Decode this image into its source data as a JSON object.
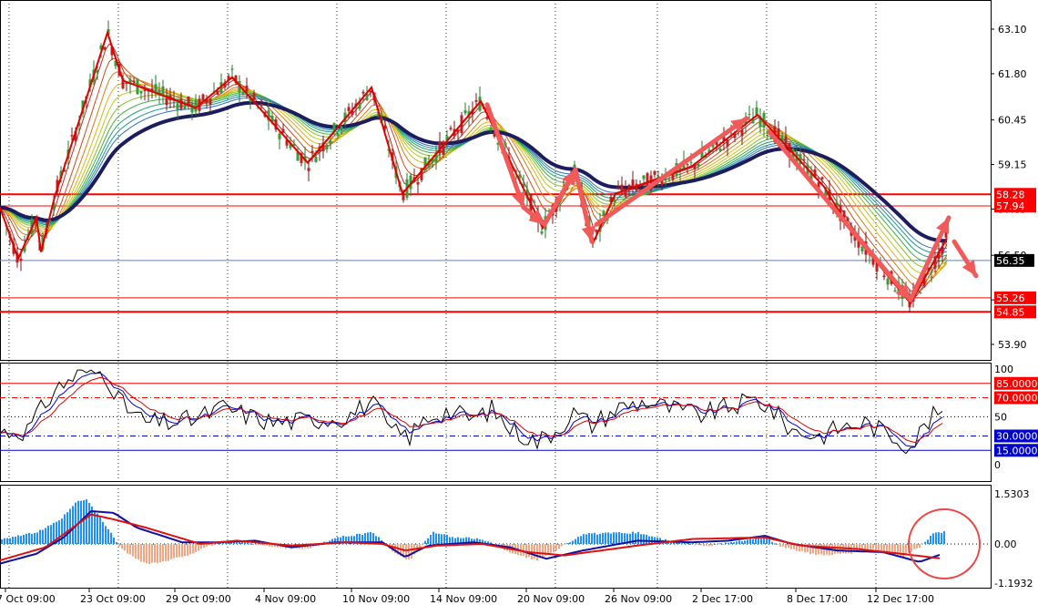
{
  "chart_data": [
    {
      "type": "candlestick",
      "pane": "price",
      "y_ticks": [
        "63.10",
        "61.80",
        "60.45",
        "59.15",
        "57.85",
        "56.50",
        "55.20",
        "53.90"
      ],
      "ylim": [
        53.4,
        63.6
      ],
      "levels": [
        {
          "value": 58.28,
          "label": "58.28"
        },
        {
          "value": 57.94,
          "label": "57.94"
        },
        {
          "value": 55.26,
          "label": "55.26"
        },
        {
          "value": 54.85,
          "label": "54.85"
        }
      ],
      "current_price": {
        "value": 56.35,
        "label": "56.35"
      },
      "zigzag": [
        [
          0,
          57.9
        ],
        [
          20,
          56.4
        ],
        [
          40,
          57.6
        ],
        [
          45,
          56.6
        ],
        [
          60,
          58.2
        ],
        [
          118,
          63.0
        ],
        [
          135,
          61.6
        ],
        [
          215,
          60.8
        ],
        [
          255,
          61.7
        ],
        [
          338,
          59.2
        ],
        [
          408,
          61.4
        ],
        [
          442,
          58.3
        ],
        [
          528,
          61.0
        ],
        [
          596,
          57.3
        ],
        [
          630,
          59.0
        ],
        [
          652,
          56.9
        ],
        [
          676,
          58.3
        ],
        [
          760,
          59.1
        ],
        [
          832,
          60.6
        ],
        [
          905,
          58.5
        ],
        [
          935,
          57.2
        ],
        [
          1000,
          55.1
        ],
        [
          1040,
          57.0
        ]
      ],
      "arrows": [
        [
          [
            535,
            60.9
          ],
          [
            575,
            57.9
          ]
        ],
        [
          [
            575,
            57.9
          ],
          [
            598,
            57.4
          ]
        ],
        [
          [
            598,
            57.4
          ],
          [
            632,
            59.0
          ]
        ],
        [
          [
            632,
            59.0
          ],
          [
            650,
            56.9
          ]
        ],
        [
          [
            655,
            57.4
          ],
          [
            820,
            60.5
          ]
        ],
        [
          [
            845,
            60.1
          ],
          [
            1000,
            55.2
          ]
        ],
        [
          [
            1000,
            55.2
          ],
          [
            1042,
            57.6
          ]
        ],
        [
          [
            1048,
            56.9
          ],
          [
            1072,
            55.9
          ]
        ]
      ]
    },
    {
      "type": "line",
      "pane": "stochastic",
      "y_ticks": [
        "100",
        "50",
        "0"
      ],
      "ylim": [
        0,
        100
      ],
      "levels": [
        {
          "value": 85,
          "label": "85.0000"
        },
        {
          "value": 70,
          "label": "70.0000"
        },
        {
          "value": 30,
          "label": "30.0000"
        },
        {
          "value": 15,
          "label": "15.0000"
        }
      ],
      "series_anchors": [
        [
          0,
          34
        ],
        [
          30,
          36
        ],
        [
          60,
          78
        ],
        [
          90,
          98
        ],
        [
          115,
          96
        ],
        [
          135,
          62
        ],
        [
          160,
          44
        ],
        [
          190,
          44
        ],
        [
          215,
          48
        ],
        [
          245,
          60
        ],
        [
          270,
          52
        ],
        [
          300,
          44
        ],
        [
          330,
          46
        ],
        [
          355,
          48
        ],
        [
          380,
          50
        ],
        [
          408,
          66
        ],
        [
          430,
          34
        ],
        [
          450,
          30
        ],
        [
          470,
          50
        ],
        [
          490,
          56
        ],
        [
          520,
          48
        ],
        [
          540,
          58
        ],
        [
          560,
          38
        ],
        [
          590,
          24
        ],
        [
          610,
          36
        ],
        [
          630,
          54
        ],
        [
          650,
          42
        ],
        [
          680,
          60
        ],
        [
          710,
          66
        ],
        [
          740,
          58
        ],
        [
          770,
          52
        ],
        [
          800,
          60
        ],
        [
          830,
          68
        ],
        [
          845,
          60
        ],
        [
          870,
          36
        ],
        [
          900,
          30
        ],
        [
          920,
          38
        ],
        [
          950,
          44
        ],
        [
          980,
          30
        ],
        [
          1000,
          20
        ],
        [
          1020,
          46
        ],
        [
          1035,
          58
        ]
      ]
    },
    {
      "type": "histogram",
      "pane": "macd",
      "y_ticks": [
        "1.5303",
        "0.00",
        "-1.1932"
      ],
      "ylim": [
        -1.35,
        1.65
      ],
      "bar_anchors": [
        [
          0,
          0.15
        ],
        [
          40,
          0.35
        ],
        [
          65,
          0.7
        ],
        [
          85,
          1.3
        ],
        [
          95,
          1.35
        ],
        [
          110,
          0.8
        ],
        [
          125,
          0.2
        ],
        [
          135,
          -0.2
        ],
        [
          160,
          -0.6
        ],
        [
          180,
          -0.55
        ],
        [
          210,
          -0.3
        ],
        [
          240,
          0.05
        ],
        [
          260,
          0.12
        ],
        [
          300,
          -0.1
        ],
        [
          340,
          -0.15
        ],
        [
          370,
          0.2
        ],
        [
          410,
          0.35
        ],
        [
          430,
          -0.2
        ],
        [
          450,
          -0.5
        ],
        [
          475,
          0.35
        ],
        [
          500,
          0.2
        ],
        [
          530,
          0.15
        ],
        [
          560,
          -0.25
        ],
        [
          590,
          -0.5
        ],
        [
          610,
          -0.2
        ],
        [
          640,
          0.3
        ],
        [
          700,
          0.35
        ],
        [
          740,
          0.05
        ],
        [
          780,
          -0.05
        ],
        [
          840,
          0.2
        ],
        [
          860,
          -0.1
        ],
        [
          900,
          -0.35
        ],
        [
          930,
          -0.3
        ],
        [
          960,
          -0.15
        ],
        [
          990,
          -0.4
        ],
        [
          1010,
          -0.1
        ],
        [
          1025,
          0.3
        ],
        [
          1038,
          0.4
        ]
      ],
      "signal_anchors": [
        [
          0,
          -0.5
        ],
        [
          50,
          -0.1
        ],
        [
          100,
          0.9
        ],
        [
          125,
          0.75
        ],
        [
          160,
          0.5
        ],
        [
          220,
          0.0
        ],
        [
          260,
          0.1
        ],
        [
          320,
          -0.05
        ],
        [
          380,
          0.05
        ],
        [
          420,
          0.0
        ],
        [
          445,
          -0.2
        ],
        [
          480,
          -0.05
        ],
        [
          530,
          0.0
        ],
        [
          580,
          -0.25
        ],
        [
          620,
          -0.35
        ],
        [
          700,
          -0.05
        ],
        [
          760,
          0.15
        ],
        [
          840,
          0.2
        ],
        [
          880,
          -0.05
        ],
        [
          940,
          -0.15
        ],
        [
          990,
          -0.3
        ],
        [
          1035,
          -0.45
        ]
      ],
      "macd_anchors": [
        [
          0,
          -0.6
        ],
        [
          40,
          -0.3
        ],
        [
          70,
          0.2
        ],
        [
          100,
          1.0
        ],
        [
          125,
          0.95
        ],
        [
          150,
          0.5
        ],
        [
          200,
          0.05
        ],
        [
          240,
          0.05
        ],
        [
          280,
          0.1
        ],
        [
          320,
          -0.1
        ],
        [
          370,
          0.05
        ],
        [
          420,
          0.05
        ],
        [
          445,
          -0.4
        ],
        [
          470,
          -0.05
        ],
        [
          520,
          0.05
        ],
        [
          560,
          -0.1
        ],
        [
          600,
          -0.45
        ],
        [
          640,
          -0.2
        ],
        [
          700,
          0.1
        ],
        [
          760,
          0.05
        ],
        [
          800,
          0.1
        ],
        [
          840,
          0.25
        ],
        [
          870,
          0.0
        ],
        [
          920,
          -0.2
        ],
        [
          970,
          -0.25
        ],
        [
          1010,
          -0.55
        ],
        [
          1035,
          -0.3
        ]
      ]
    }
  ],
  "x_axis": {
    "labels": [
      "7 Oct 09:00",
      "23 Oct 09:00",
      "29 Oct 09:00",
      "4 Nov 09:00",
      "10 Nov 09:00",
      "14 Nov 09:00",
      "20 Nov 09:00",
      "26 Nov 09:00",
      "2 Dec 17:00",
      "8 Dec 17:00",
      "12 Dec 17:00"
    ]
  },
  "colors": {
    "level_red": "#ff0000",
    "zigzag": "#e00000",
    "arrow": "#f25a5a",
    "ma_thick": "#1c1c5e",
    "grid": "#000000",
    "macd_up": "#1e90ff",
    "macd_down": "#f4a582",
    "stoch_main": "#000000",
    "stoch_blue": "#0000cc",
    "stoch_red": "#dd0000",
    "circle": "#ee4444",
    "current_line": "#5b7fd6"
  }
}
